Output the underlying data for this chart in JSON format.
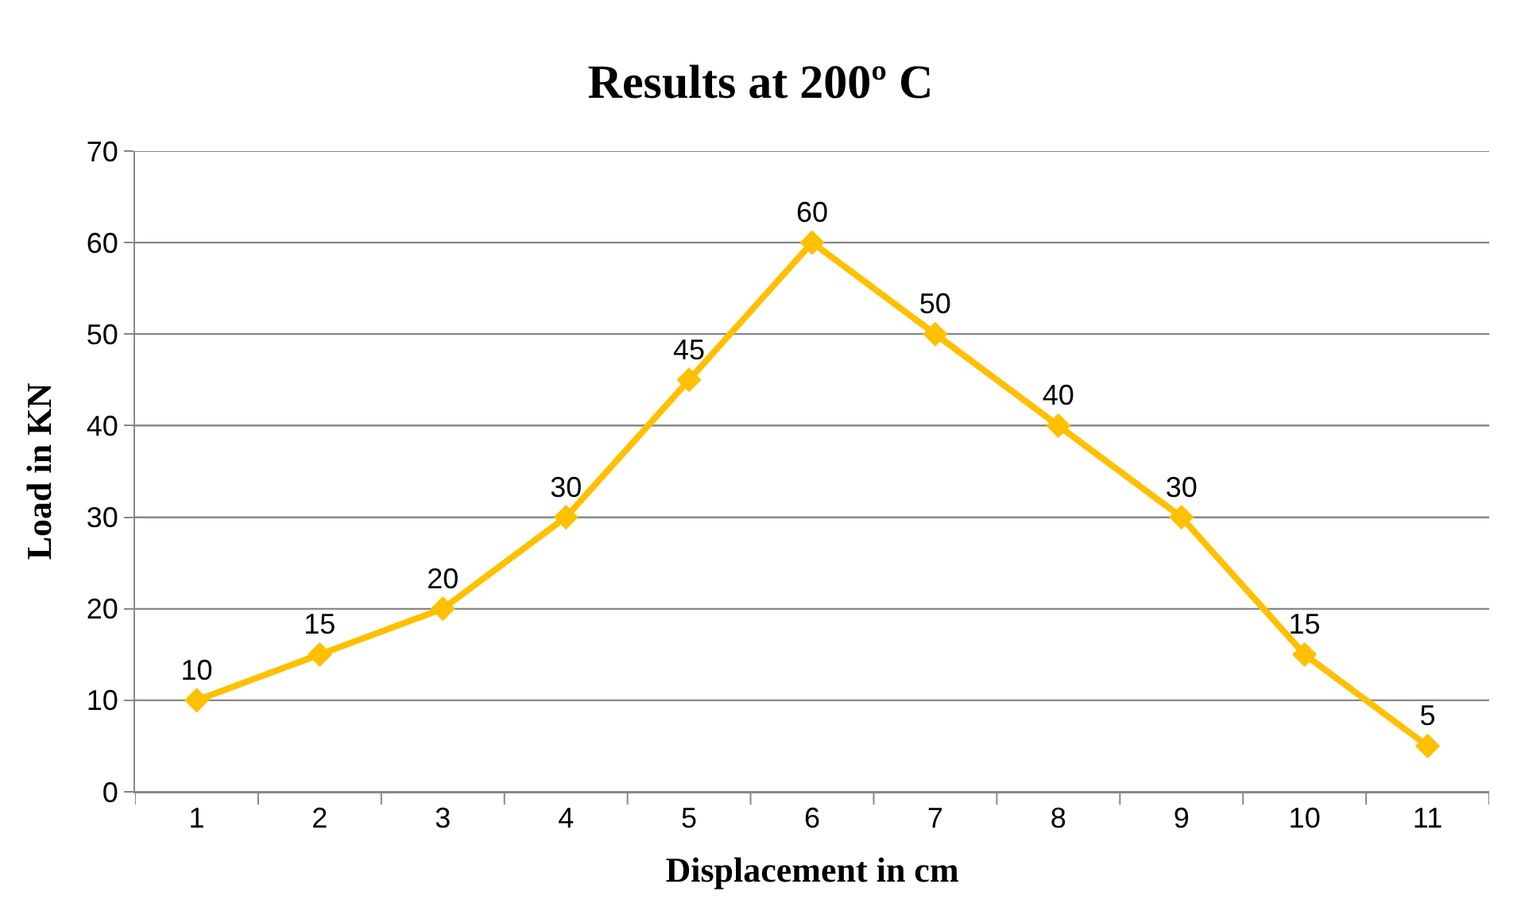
{
  "chart_data": {
    "type": "line",
    "title": "Results at 200º C",
    "xlabel": "Displacement in cm",
    "ylabel": "Load in KN",
    "categories": [
      "1",
      "2",
      "3",
      "4",
      "5",
      "6",
      "7",
      "8",
      "9",
      "10",
      "11"
    ],
    "series": [
      {
        "color": "#ffc000",
        "values": [
          10,
          15,
          20,
          30,
          45,
          60,
          50,
          40,
          30,
          15,
          5
        ]
      }
    ],
    "ylim": [
      0,
      70
    ],
    "yticks": [
      0,
      10,
      20,
      30,
      40,
      50,
      60,
      70
    ],
    "grid": "y",
    "marker": "diamond",
    "line_style": "solid",
    "data_labels": true
  }
}
